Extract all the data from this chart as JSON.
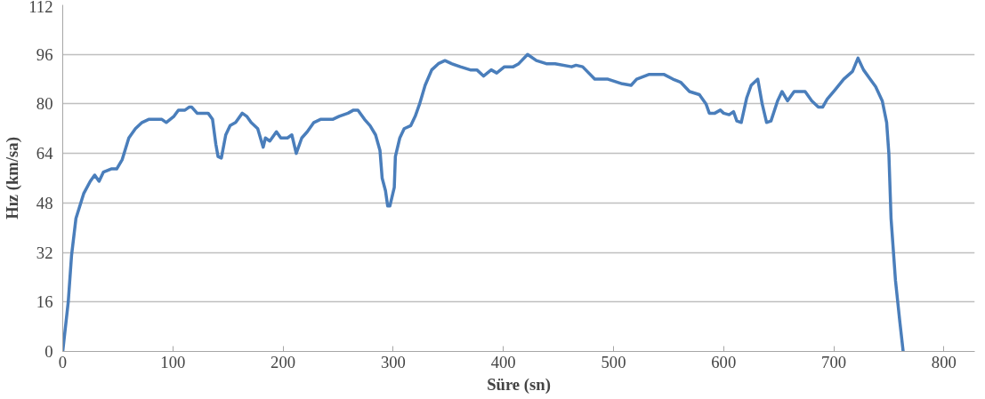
{
  "chart_data": {
    "type": "line",
    "xlabel": "Süre (sn)",
    "ylabel": "Hız (km/sa)",
    "xlim": [
      0,
      828
    ],
    "xticks": [
      0,
      100,
      200,
      300,
      400,
      500,
      600,
      700,
      800
    ],
    "ylim": [
      0,
      112
    ],
    "yticks": [
      0,
      16,
      32,
      48,
      64,
      80,
      96,
      112
    ],
    "grid": "y",
    "marker": "none",
    "line_style": "solid",
    "series": [
      {
        "color": "#4a7ebb",
        "x": [
          0,
          5,
          8,
          12,
          19,
          25,
          29,
          33,
          37,
          44,
          49,
          54,
          60,
          66,
          72,
          78,
          85,
          90,
          94,
          101,
          105,
          111,
          115,
          117,
          122,
          126,
          132,
          136,
          139,
          141,
          144,
          148,
          152,
          157,
          163,
          167,
          171,
          177,
          182,
          184,
          188,
          194,
          198,
          204,
          208,
          212,
          217,
          222,
          228,
          234,
          245,
          251,
          259,
          264,
          268,
          274,
          279,
          284,
          288,
          290,
          293,
          295,
          297,
          301,
          302,
          306,
          310,
          316,
          320,
          324,
          329,
          335,
          341,
          347,
          353,
          361,
          370,
          376,
          382,
          389,
          394,
          401,
          409,
          414,
          422,
          430,
          439,
          447,
          462,
          466,
          472,
          483,
          495,
          508,
          516,
          521,
          532,
          546,
          554,
          561,
          569,
          578,
          584,
          587,
          592,
          597,
          600,
          605,
          609,
          612,
          616,
          621,
          625,
          631,
          635,
          639,
          643,
          649,
          653,
          658,
          664,
          670,
          674,
          680,
          686,
          690,
          694,
          701,
          709,
          717,
          722,
          727,
          733,
          738,
          744,
          748,
          750,
          752,
          756,
          760,
          763
        ],
        "values": [
          0,
          16,
          31,
          43,
          51,
          55,
          57,
          55,
          58,
          59,
          59,
          62,
          69,
          72,
          74,
          75,
          75,
          75,
          74,
          76,
          78,
          78,
          79,
          79,
          77,
          77,
          77,
          75,
          67,
          63,
          62.5,
          70,
          73,
          74,
          77,
          76,
          74,
          72,
          66,
          69,
          68,
          71,
          69,
          69,
          70,
          64,
          69,
          71,
          74,
          75,
          75,
          76,
          77,
          78,
          78,
          75,
          73,
          70,
          65,
          56,
          52,
          47,
          47,
          53,
          63,
          69,
          72,
          73,
          76,
          80,
          86,
          91,
          93,
          94,
          93,
          92,
          91,
          91,
          89,
          91,
          90,
          92,
          92,
          93,
          96,
          94,
          93,
          93,
          92,
          92.5,
          92,
          88,
          88,
          86.5,
          86,
          88,
          89.5,
          89.5,
          88,
          87,
          84,
          83,
          80,
          77,
          77,
          78,
          77,
          76.5,
          77.5,
          74.5,
          74,
          82,
          86,
          88,
          80,
          74,
          74.5,
          81,
          84,
          81,
          84,
          84,
          84,
          81,
          79,
          79,
          81.5,
          84.5,
          88,
          90.5,
          94.8,
          91,
          88,
          85.6,
          81,
          74,
          64,
          43,
          23,
          9.5,
          0
        ]
      }
    ]
  }
}
